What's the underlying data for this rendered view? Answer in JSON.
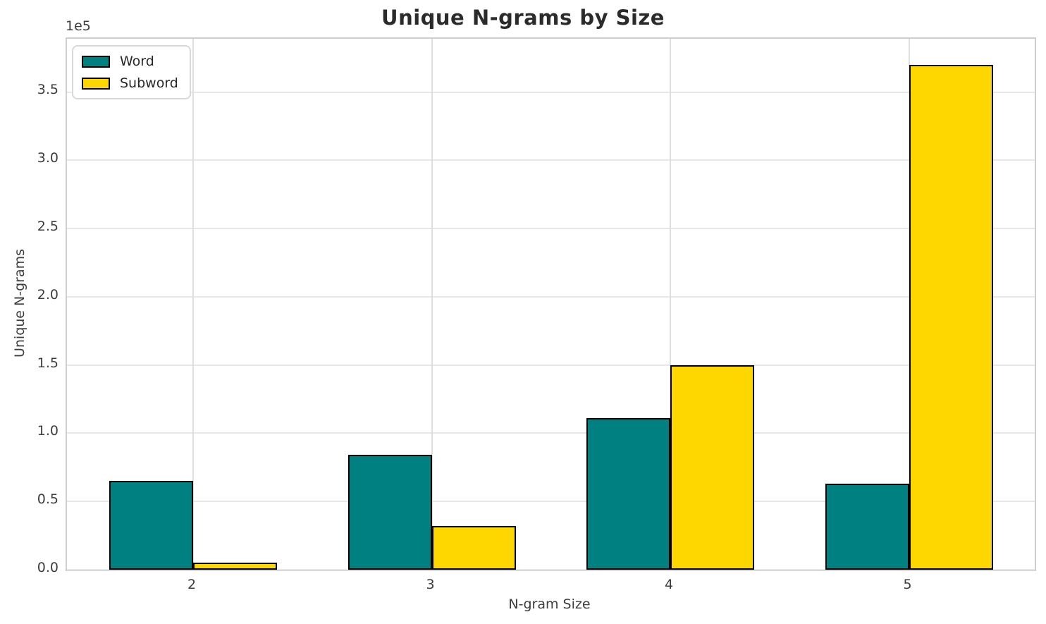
{
  "chart_data": {
    "type": "bar",
    "title": "Unique N-grams by Size",
    "xlabel": "N-gram Size",
    "ylabel": "Unique N-grams",
    "offset_label": "1e5",
    "categories": [
      "2",
      "3",
      "4",
      "5"
    ],
    "series": [
      {
        "name": "Word",
        "color": "#008080",
        "values": [
          65000,
          84000,
          111000,
          63000
        ]
      },
      {
        "name": "Subword",
        "color": "#FFD700",
        "values": [
          5000,
          32000,
          150000,
          370000
        ]
      }
    ],
    "bar_edge_color": "#000000",
    "y_ticks": [
      {
        "label": "0.0",
        "value": 0
      },
      {
        "label": "0.5",
        "value": 50000
      },
      {
        "label": "1.0",
        "value": 100000
      },
      {
        "label": "1.5",
        "value": 150000
      },
      {
        "label": "2.0",
        "value": 200000
      },
      {
        "label": "2.5",
        "value": 250000
      },
      {
        "label": "3.0",
        "value": 300000
      },
      {
        "label": "3.5",
        "value": 350000
      }
    ],
    "ylim": [
      0,
      389000
    ],
    "grid": true,
    "legend_position": "upper left"
  }
}
